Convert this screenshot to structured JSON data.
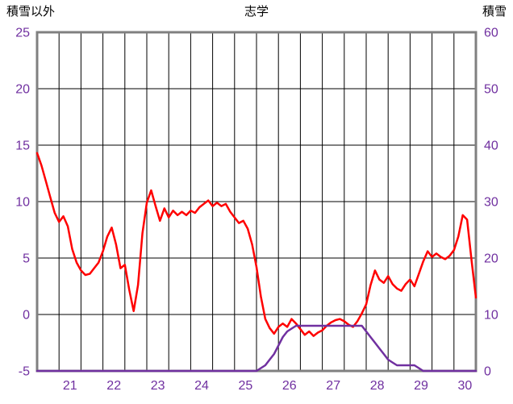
{
  "chart_data": {
    "type": "line",
    "title": "志学",
    "left_axis": {
      "title": "積雪以外",
      "min": -5,
      "max": 25,
      "ticks": [
        25,
        20,
        15,
        10,
        5,
        0,
        -5
      ]
    },
    "right_axis": {
      "title": "積雪",
      "min": 0,
      "max": 60,
      "ticks": [
        60,
        50,
        40,
        30,
        20,
        10,
        0
      ]
    },
    "x_range": [
      20.5,
      30.5
    ],
    "x_start": 20.5,
    "x_step": 0.1,
    "grid_x_step": 0.5,
    "grid": true,
    "legend": "none",
    "x_tick_labels": [
      "21",
      "22",
      "23",
      "24",
      "25",
      "26",
      "27",
      "28",
      "29",
      "30"
    ],
    "x_tick_positions": [
      21.25,
      22.25,
      23.25,
      24.25,
      25.25,
      26.25,
      27.25,
      28.25,
      29.25,
      30.25
    ],
    "colors": {
      "temperature": "#ff0000",
      "snow": "#7030a0",
      "tick_label": "#7030a0",
      "grid": "#000000",
      "frame": "#808080",
      "background": "#ffffff"
    },
    "series": [
      {
        "id": "non-snow",
        "name": "積雪以外",
        "axis": "left",
        "color": "#ff0000",
        "values": [
          14.3,
          13.2,
          11.8,
          10.4,
          9.0,
          8.2,
          8.7,
          7.8,
          5.8,
          4.6,
          3.9,
          3.5,
          3.6,
          4.1,
          4.6,
          5.6,
          6.9,
          7.7,
          6.2,
          4.1,
          4.4,
          2.2,
          0.3,
          2.6,
          7.2,
          9.9,
          11.0,
          9.6,
          8.3,
          9.4,
          8.6,
          9.2,
          8.8,
          9.1,
          8.8,
          9.2,
          9.0,
          9.5,
          9.8,
          10.1,
          9.6,
          9.9,
          9.6,
          9.8,
          9.1,
          8.6,
          8.1,
          8.3,
          7.6,
          6.2,
          4.2,
          1.6,
          -0.4,
          -1.2,
          -1.7,
          -1.1,
          -0.8,
          -1.1,
          -0.4,
          -0.8,
          -1.3,
          -1.8,
          -1.5,
          -1.9,
          -1.6,
          -1.4,
          -1.0,
          -0.7,
          -0.5,
          -0.4,
          -0.6,
          -0.9,
          -1.1,
          -0.6,
          0.1,
          0.9,
          2.6,
          3.9,
          3.1,
          2.8,
          3.4,
          2.7,
          2.3,
          2.1,
          2.7,
          3.1,
          2.5,
          3.6,
          4.7,
          5.6,
          5.1,
          5.4,
          5.1,
          4.9,
          5.2,
          5.7,
          6.9,
          8.8,
          8.4,
          4.8,
          1.5
        ]
      },
      {
        "id": "snow",
        "name": "積雪",
        "axis": "right",
        "color": "#7030a0",
        "values": [
          0,
          0,
          0,
          0,
          0,
          0,
          0,
          0,
          0,
          0,
          0,
          0,
          0,
          0,
          0,
          0,
          0,
          0,
          0,
          0,
          0,
          0,
          0,
          0,
          0,
          0,
          0,
          0,
          0,
          0,
          0,
          0,
          0,
          0,
          0,
          0,
          0,
          0,
          0,
          0,
          0,
          0,
          0,
          0,
          0,
          0,
          0,
          0,
          0,
          0,
          0,
          0.5,
          1,
          2,
          3,
          4.5,
          6,
          7,
          7.5,
          8,
          8,
          8,
          8,
          8,
          8,
          8,
          8,
          8,
          8,
          8,
          8,
          8,
          8,
          8,
          8,
          7,
          6,
          5,
          4,
          3,
          2,
          1.5,
          1,
          1,
          1,
          1,
          1,
          0.5,
          0,
          0,
          0,
          0,
          0,
          0,
          0,
          0,
          0,
          0,
          0,
          0,
          0
        ]
      }
    ]
  }
}
